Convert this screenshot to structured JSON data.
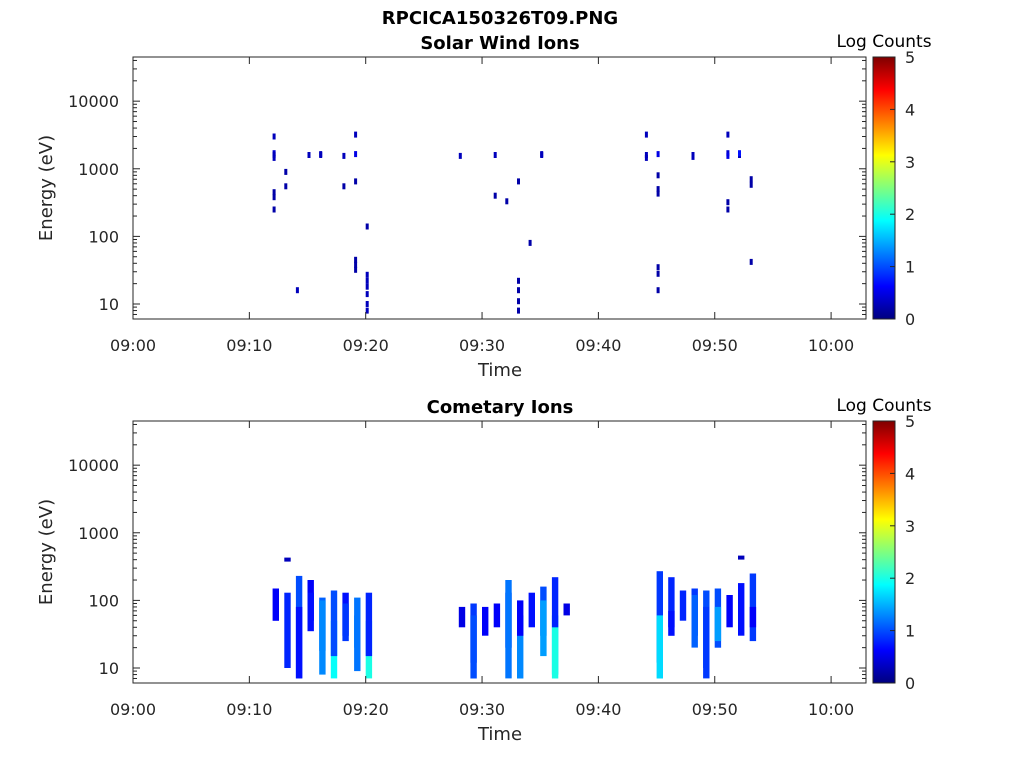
{
  "figure_title": "RPCICA150326T09.PNG",
  "colors": {
    "colormap": [
      "#00007f",
      "#0000ff",
      "#007fff",
      "#00ffff",
      "#7fff7f",
      "#ffff00",
      "#ff7f00",
      "#ff0000",
      "#7f0000"
    ],
    "axis": "#262626",
    "background": "#ffffff"
  },
  "chart_data": [
    {
      "type": "heatmap",
      "title": "Solar Wind Ions",
      "xlabel": "Time",
      "ylabel": "Energy (eV)",
      "xlim": [
        "09:00",
        "10:03"
      ],
      "x_ticks": [
        "09:00",
        "09:10",
        "09:20",
        "09:30",
        "09:40",
        "09:50",
        "10:00"
      ],
      "y_scale": "log",
      "ylim": [
        6,
        45000
      ],
      "y_ticks": [
        10,
        100,
        1000,
        10000
      ],
      "y_tick_labels": [
        "10",
        "100",
        "1000",
        "10000"
      ],
      "colorbar": {
        "label": "Log Counts",
        "range": [
          0,
          5
        ],
        "ticks": [
          "0",
          "1",
          "2",
          "3",
          "4",
          "5"
        ]
      },
      "cells": [
        [
          "09:12",
          3000,
          0.3
        ],
        [
          "09:12",
          1700,
          0.4
        ],
        [
          "09:12",
          1600,
          0.3
        ],
        [
          "09:12",
          450,
          0.2
        ],
        [
          "09:12",
          380,
          0.2
        ],
        [
          "09:12",
          250,
          0.2
        ],
        [
          "09:12",
          1450,
          0.3
        ],
        [
          "09:13",
          900,
          0.2
        ],
        [
          "09:13",
          550,
          0.2
        ],
        [
          "09:14",
          16,
          0.3
        ],
        [
          "09:15",
          1600,
          0.3
        ],
        [
          "09:16",
          1650,
          0.3
        ],
        [
          "09:16",
          1600,
          0.3
        ],
        [
          "09:18",
          1550,
          0.3
        ],
        [
          "09:18",
          550,
          0.2
        ],
        [
          "09:19",
          3200,
          0.3
        ],
        [
          "09:19",
          1650,
          0.5
        ],
        [
          "09:19",
          650,
          0.2
        ],
        [
          "09:19",
          45,
          0.2
        ],
        [
          "09:19",
          38,
          0.2
        ],
        [
          "09:19",
          32,
          0.2
        ],
        [
          "09:20",
          27,
          0.3
        ],
        [
          "09:20",
          22,
          0.3
        ],
        [
          "09:20",
          18,
          0.3
        ],
        [
          "09:20",
          14,
          0.3
        ],
        [
          "09:20",
          10,
          0.3
        ],
        [
          "09:20",
          8,
          0.3
        ],
        [
          "09:20",
          140,
          0.2
        ],
        [
          "09:28",
          1550,
          0.3
        ],
        [
          "09:31",
          1600,
          0.3
        ],
        [
          "09:31",
          400,
          0.2
        ],
        [
          "09:32",
          330,
          0.2
        ],
        [
          "09:33",
          650,
          0.2
        ],
        [
          "09:33",
          22,
          0.2
        ],
        [
          "09:33",
          16,
          0.2
        ],
        [
          "09:33",
          11,
          0.2
        ],
        [
          "09:33",
          8,
          0.2
        ],
        [
          "09:34",
          80,
          0.2
        ],
        [
          "09:35",
          1650,
          0.3
        ],
        [
          "09:35",
          1600,
          0.3
        ],
        [
          "09:44",
          3200,
          0.3
        ],
        [
          "09:44",
          1600,
          0.3
        ],
        [
          "09:44",
          1450,
          0.3
        ],
        [
          "09:45",
          1650,
          0.5
        ],
        [
          "09:45",
          800,
          0.2
        ],
        [
          "09:45",
          500,
          0.2
        ],
        [
          "09:45",
          430,
          0.2
        ],
        [
          "09:45",
          35,
          0.2
        ],
        [
          "09:45",
          28,
          0.2
        ],
        [
          "09:45",
          16,
          0.2
        ],
        [
          "09:48",
          1600,
          0.3
        ],
        [
          "09:48",
          1500,
          0.3
        ],
        [
          "09:51",
          3200,
          0.3
        ],
        [
          "09:51",
          1700,
          0.4
        ],
        [
          "09:51",
          1550,
          0.5
        ],
        [
          "09:51",
          320,
          0.2
        ],
        [
          "09:51",
          250,
          0.2
        ],
        [
          "09:52",
          1600,
          0.3
        ],
        [
          "09:52",
          1700,
          0.7
        ],
        [
          "09:53",
          700,
          0.2
        ],
        [
          "09:53",
          580,
          0.2
        ],
        [
          "09:53",
          42,
          0.2
        ]
      ]
    },
    {
      "type": "heatmap",
      "title": "Cometary Ions",
      "xlabel": "Time",
      "ylabel": "Energy (eV)",
      "xlim": [
        "09:00",
        "10:03"
      ],
      "x_ticks": [
        "09:00",
        "09:10",
        "09:20",
        "09:30",
        "09:40",
        "09:50",
        "10:00"
      ],
      "y_scale": "log",
      "ylim": [
        6,
        45000
      ],
      "y_ticks": [
        10,
        100,
        1000,
        10000
      ],
      "y_tick_labels": [
        "10",
        "100",
        "1000",
        "10000"
      ],
      "colorbar": {
        "label": "Log Counts",
        "range": [
          0,
          5
        ],
        "ticks": [
          "0",
          "1",
          "2",
          "3",
          "4",
          "5"
        ]
      },
      "columns": [
        [
          "09:12",
          50,
          150,
          0.6
        ],
        [
          "09:13",
          400,
          430,
          0.3
        ],
        [
          "09:13",
          10,
          130,
          0.8
        ],
        [
          "09:14",
          7,
          230,
          1.0
        ],
        [
          "09:14",
          7,
          80,
          0.7
        ],
        [
          "09:15",
          50,
          200,
          0.6
        ],
        [
          "09:15",
          35,
          130,
          0.7
        ],
        [
          "09:16",
          18,
          110,
          1.1
        ],
        [
          "09:16",
          8,
          100,
          1.3
        ],
        [
          "09:17",
          7,
          50,
          1.9
        ],
        [
          "09:17",
          15,
          140,
          1.0
        ],
        [
          "09:18",
          30,
          130,
          0.7
        ],
        [
          "09:18",
          25,
          90,
          0.9
        ],
        [
          "09:19",
          20,
          60,
          1.3
        ],
        [
          "09:19",
          9,
          110,
          1.2
        ],
        [
          "09:20",
          7,
          50,
          2.0
        ],
        [
          "09:20",
          15,
          130,
          0.8
        ],
        [
          "09:28",
          40,
          80,
          0.5
        ],
        [
          "09:29",
          12,
          90,
          0.9
        ],
        [
          "09:29",
          7,
          60,
          1.0
        ],
        [
          "09:30",
          30,
          80,
          0.6
        ],
        [
          "09:31",
          40,
          90,
          0.6
        ],
        [
          "09:32",
          20,
          130,
          0.8
        ],
        [
          "09:32",
          7,
          200,
          1.2
        ],
        [
          "09:33",
          7,
          60,
          1.3
        ],
        [
          "09:33",
          30,
          100,
          0.6
        ],
        [
          "09:34",
          40,
          130,
          0.7
        ],
        [
          "09:35",
          30,
          160,
          1.0
        ],
        [
          "09:35",
          15,
          100,
          1.4
        ],
        [
          "09:36",
          8,
          60,
          1.6
        ],
        [
          "09:36",
          7,
          40,
          2.0
        ],
        [
          "09:36",
          40,
          220,
          0.8
        ],
        [
          "09:37",
          60,
          90,
          0.5
        ],
        [
          "09:45",
          12,
          270,
          0.9
        ],
        [
          "09:45",
          7,
          60,
          1.7
        ],
        [
          "09:46",
          40,
          220,
          0.8
        ],
        [
          "09:46",
          30,
          70,
          0.7
        ],
        [
          "09:47",
          50,
          140,
          0.8
        ],
        [
          "09:48",
          30,
          150,
          0.9
        ],
        [
          "09:48",
          20,
          120,
          1.1
        ],
        [
          "09:49",
          10,
          140,
          1.0
        ],
        [
          "09:49",
          7,
          80,
          0.9
        ],
        [
          "09:50",
          20,
          150,
          1.0
        ],
        [
          "09:50",
          25,
          80,
          1.4
        ],
        [
          "09:51",
          40,
          120,
          0.6
        ],
        [
          "09:52",
          450,
          460,
          0.3
        ],
        [
          "09:52",
          30,
          180,
          0.7
        ],
        [
          "09:53",
          25,
          250,
          0.9
        ],
        [
          "09:53",
          40,
          80,
          0.6
        ]
      ]
    }
  ]
}
